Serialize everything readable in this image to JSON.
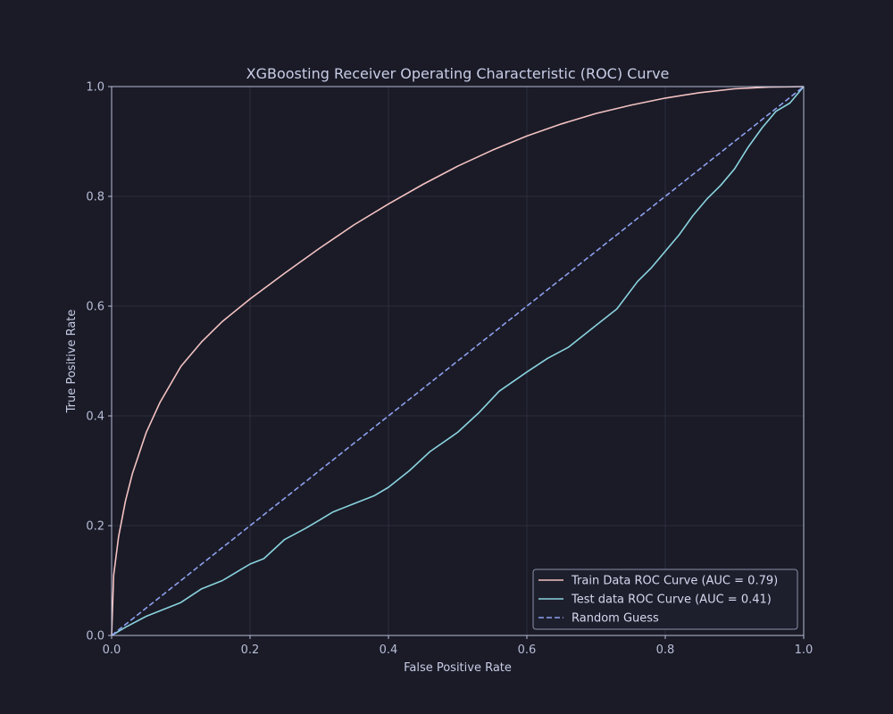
{
  "chart_data": {
    "type": "line",
    "title": "XGBoosting Receiver Operating Characteristic (ROC) Curve",
    "xlabel": "False Positive Rate",
    "ylabel": "True Positive Rate",
    "xlim": [
      0,
      1
    ],
    "ylim": [
      0,
      1
    ],
    "xticks": [
      "0.0",
      "0.2",
      "0.4",
      "0.6",
      "0.8",
      "1.0"
    ],
    "yticks": [
      "0.0",
      "0.2",
      "0.4",
      "0.6",
      "0.8",
      "1.0"
    ],
    "grid": true,
    "legend_position": "bottom-right",
    "series": [
      {
        "name": "Train Data ROC Curve (AUC = 0.79)",
        "color": "#f4c2c2",
        "style": "solid",
        "x": [
          0,
          0.003,
          0.01,
          0.02,
          0.03,
          0.05,
          0.07,
          0.1,
          0.13,
          0.16,
          0.2,
          0.25,
          0.3,
          0.35,
          0.4,
          0.45,
          0.5,
          0.55,
          0.6,
          0.65,
          0.7,
          0.75,
          0.8,
          0.85,
          0.9,
          0.95,
          1.0
        ],
        "y": [
          0,
          0.11,
          0.18,
          0.245,
          0.295,
          0.37,
          0.425,
          0.49,
          0.535,
          0.572,
          0.613,
          0.66,
          0.705,
          0.748,
          0.786,
          0.822,
          0.855,
          0.884,
          0.91,
          0.932,
          0.951,
          0.966,
          0.979,
          0.989,
          0.996,
          0.999,
          1.0
        ]
      },
      {
        "name": "Test data ROC Curve (AUC = 0.41)",
        "color": "#8ad3de",
        "style": "solid",
        "x": [
          0,
          0.02,
          0.05,
          0.1,
          0.13,
          0.16,
          0.2,
          0.22,
          0.25,
          0.28,
          0.3,
          0.32,
          0.35,
          0.38,
          0.4,
          0.43,
          0.46,
          0.5,
          0.53,
          0.56,
          0.6,
          0.63,
          0.66,
          0.7,
          0.73,
          0.76,
          0.78,
          0.8,
          0.82,
          0.84,
          0.86,
          0.88,
          0.9,
          0.92,
          0.94,
          0.96,
          0.98,
          1.0
        ],
        "y": [
          0,
          0.015,
          0.035,
          0.06,
          0.085,
          0.1,
          0.13,
          0.14,
          0.175,
          0.195,
          0.21,
          0.225,
          0.24,
          0.255,
          0.27,
          0.3,
          0.335,
          0.37,
          0.405,
          0.445,
          0.48,
          0.505,
          0.525,
          0.565,
          0.595,
          0.645,
          0.67,
          0.7,
          0.73,
          0.765,
          0.795,
          0.82,
          0.85,
          0.89,
          0.925,
          0.955,
          0.97,
          1.0
        ]
      },
      {
        "name": "Random Guess",
        "color": "#8ea0ee",
        "style": "dashed",
        "x": [
          0,
          1
        ],
        "y": [
          0,
          1
        ]
      }
    ]
  },
  "colors": {
    "background": "#1a1b27",
    "axes_frame": "#b8bdd6",
    "grid": "#2c2e3e",
    "legend_bg": "#1e1f2d",
    "legend_border": "#8c90a8"
  }
}
